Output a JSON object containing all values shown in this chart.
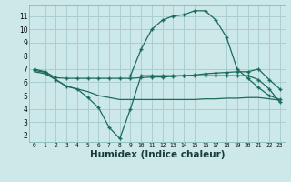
{
  "bg_color": "#cce8e8",
  "grid_color": "#aacfcf",
  "line_color": "#1a6b5a",
  "xlabel": "Humidex (Indice chaleur)",
  "xlabel_fontsize": 7.5,
  "ylabel_ticks": [
    2,
    3,
    4,
    5,
    6,
    7,
    8,
    9,
    10,
    11
  ],
  "xlim": [
    -0.5,
    23.5
  ],
  "ylim": [
    1.5,
    11.8
  ],
  "xtick_labels": [
    "0",
    "1",
    "2",
    "3",
    "4",
    "5",
    "6",
    "7",
    "8",
    "9",
    "10",
    "11",
    "12",
    "13",
    "14",
    "15",
    "16",
    "17",
    "18",
    "19",
    "20",
    "21",
    "22",
    "23"
  ],
  "series1_x": [
    0,
    1,
    2,
    3,
    4,
    5,
    6,
    7,
    8,
    9,
    10,
    11,
    12,
    13,
    14,
    15,
    16,
    17,
    18,
    19,
    20,
    21,
    22,
    23
  ],
  "series1_y": [
    7.0,
    6.8,
    6.35,
    6.3,
    6.3,
    6.3,
    6.3,
    6.3,
    6.3,
    6.3,
    6.35,
    6.4,
    6.4,
    6.45,
    6.5,
    6.55,
    6.65,
    6.7,
    6.75,
    6.8,
    6.8,
    7.0,
    6.2,
    5.5
  ],
  "series2_x": [
    0,
    1,
    2,
    3,
    4,
    5,
    6,
    7,
    8,
    9,
    10,
    11,
    12,
    13,
    14,
    15,
    16,
    17,
    18,
    19,
    20,
    21,
    22,
    23
  ],
  "series2_y": [
    6.8,
    6.65,
    6.2,
    5.7,
    5.5,
    5.3,
    5.0,
    4.85,
    4.7,
    4.7,
    4.7,
    4.7,
    4.7,
    4.7,
    4.7,
    4.7,
    4.75,
    4.75,
    4.8,
    4.8,
    4.85,
    4.85,
    4.75,
    4.65
  ],
  "series3_x": [
    0,
    1,
    2,
    3,
    4,
    5,
    6,
    7,
    8,
    9,
    10,
    11,
    12,
    13,
    14,
    15,
    16,
    17,
    18,
    19,
    20,
    21,
    22,
    23
  ],
  "series3_y": [
    6.9,
    6.75,
    6.2,
    5.7,
    5.5,
    4.85,
    4.1,
    2.6,
    1.75,
    4.0,
    6.5,
    6.5,
    6.5,
    6.5,
    6.5,
    6.5,
    6.5,
    6.5,
    6.5,
    6.5,
    6.5,
    6.2,
    5.5,
    4.5
  ],
  "series4_x": [
    9,
    10,
    11,
    12,
    13,
    14,
    15,
    16,
    17,
    18,
    19,
    20,
    21,
    22,
    23
  ],
  "series4_y": [
    6.5,
    8.5,
    10.0,
    10.7,
    11.0,
    11.1,
    11.4,
    11.4,
    10.7,
    9.4,
    7.0,
    6.3,
    5.6,
    5.0,
    4.7
  ],
  "marker": "+",
  "markersize": 3,
  "linewidth": 0.9
}
